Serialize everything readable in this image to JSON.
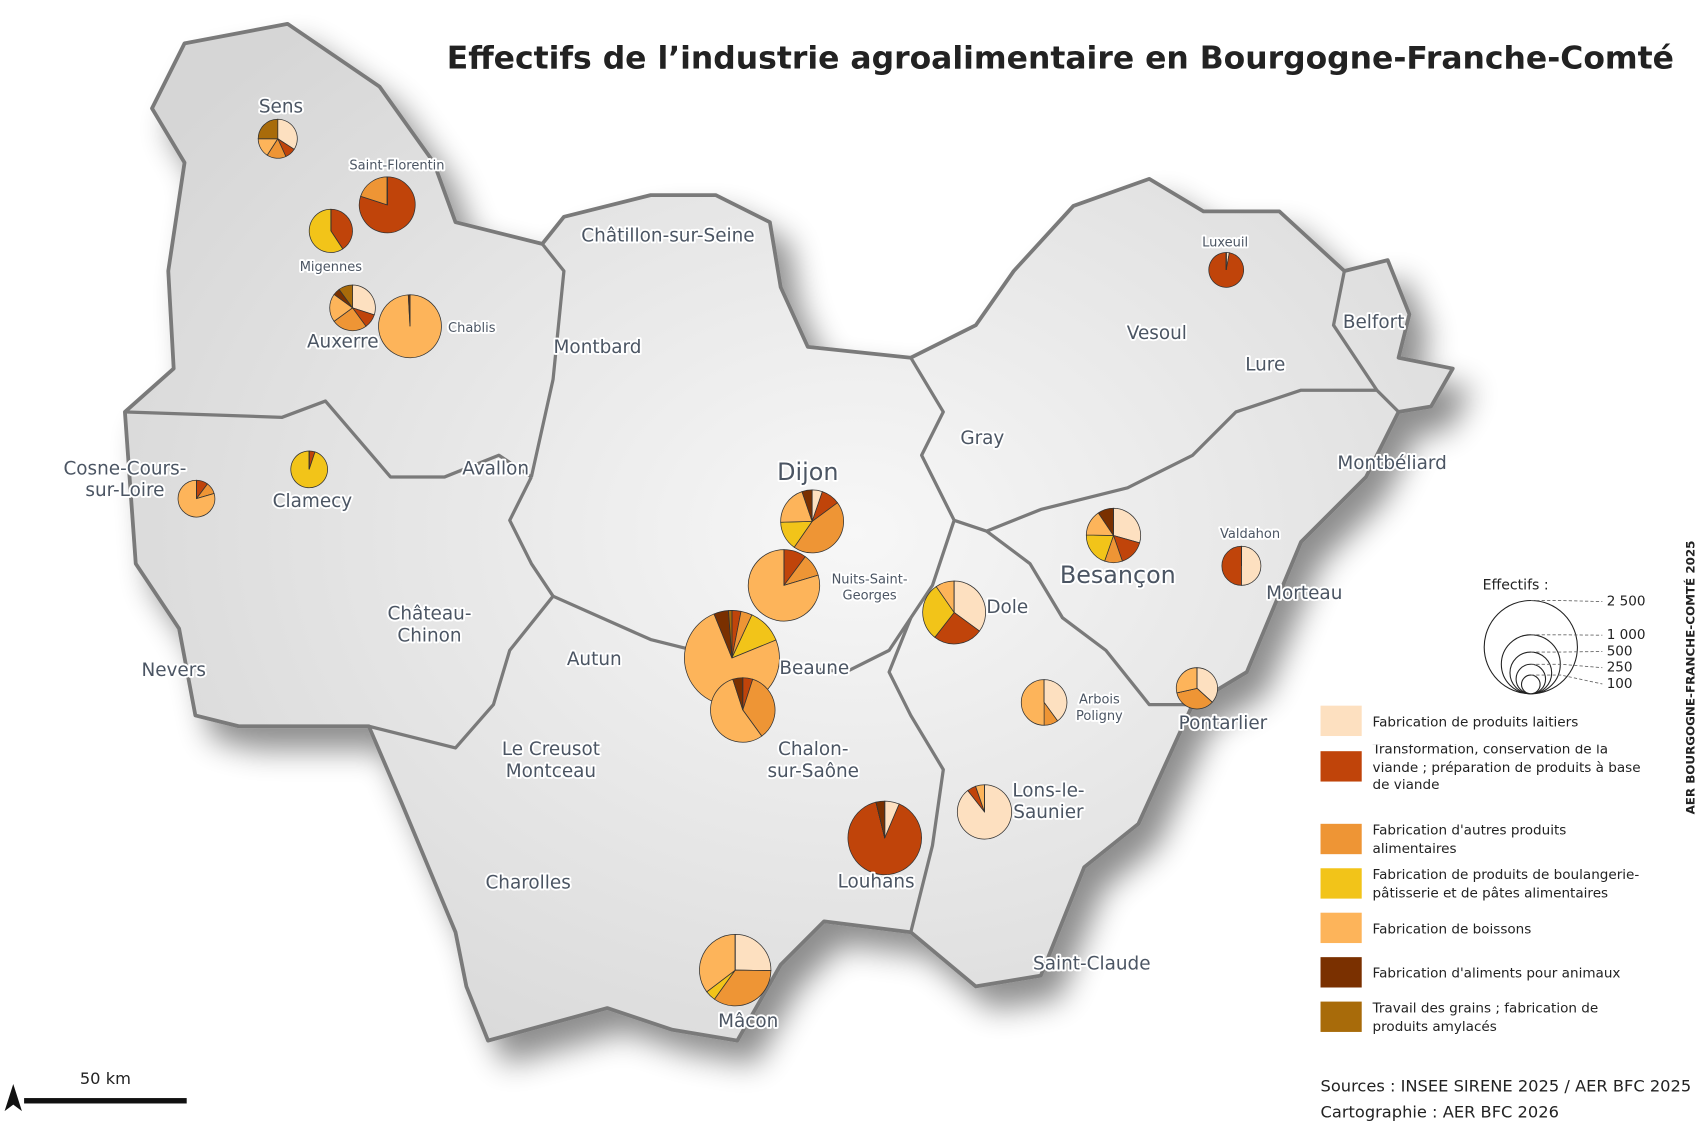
{
  "map": {
    "title": "Effectifs de l’industrie agroalimentaire en Bourgogne-Franche-Comté",
    "side_note": "AER BOURGOGNE-FRANCHE-COMTÉ 2025",
    "categories": [
      {
        "name": "Fabrication de produits laitiers",
        "color": "#fde0c0"
      },
      {
        "name": "Transformation, conservation de la viande ; préparation de produits à base de viande",
        "color": "#c0440a"
      },
      {
        "name": "Fabrication d'autres produits alimentaires",
        "color": "#ee9535"
      },
      {
        "name": "Fabrication de produits de boulangerie-pâtisserie et de pâtes alimentaires",
        "color": "#f2c419"
      },
      {
        "name": "Fabrication de boissons",
        "color": "#fdb45a"
      },
      {
        "name": "Fabrication d'aliments pour animaux",
        "color": "#7a3000"
      },
      {
        "name": "Travail des grains ; fabrication de produits amylacés",
        "color": "#a86b0a"
      }
    ],
    "size_legend": {
      "title": "Effectifs :",
      "ticks": [
        {
          "value": 2500,
          "label": "2 500"
        },
        {
          "value": 1000,
          "label": "1 000"
        },
        500,
        250,
        100
      ]
    },
    "places": [
      {
        "lines": [
          "Sens"
        ],
        "values": [
          150,
          40,
          70,
          0,
          70,
          0,
          110
        ]
      },
      {
        "lines": [
          "Saint-Florentin"
        ],
        "values": [
          0,
          720,
          180,
          0,
          0,
          0,
          0
        ]
      },
      {
        "lines": [
          "Migennes"
        ],
        "values": [
          0,
          220,
          0,
          320,
          0,
          0,
          0
        ]
      },
      {
        "lines": [
          "Auxerre"
        ],
        "values": [
          180,
          60,
          150,
          0,
          120,
          30,
          60
        ]
      },
      {
        "lines": [
          "Chablis"
        ],
        "values": [
          0,
          0,
          0,
          0,
          1130,
          10,
          0
        ]
      },
      {
        "lines": [
          "Châtillon-sur-Seine"
        ]
      },
      {
        "lines": [
          "Montbard"
        ]
      },
      {
        "lines": [
          "Avallon"
        ]
      },
      {
        "lines": [
          "Cosne-Cours-",
          "sur-Loire"
        ],
        "values": [
          0,
          40,
          40,
          0,
          310,
          0,
          0
        ]
      },
      {
        "lines": [
          "Clamecy"
        ],
        "values": [
          0,
          20,
          0,
          370,
          0,
          0,
          0
        ]
      },
      {
        "lines": [
          "Château-",
          "Chinon"
        ]
      },
      {
        "lines": [
          "Nevers"
        ]
      },
      {
        "lines": [
          "Autun"
        ]
      },
      {
        "lines": [
          "Le Creusot",
          "Montceau"
        ]
      },
      {
        "lines": [
          "Charolles"
        ]
      },
      {
        "lines": [
          "Dijon"
        ],
        "values": [
          60,
          110,
          510,
          170,
          230,
          60,
          0
        ]
      },
      {
        "lines": [
          "Nuits-Saint-",
          "Georges"
        ],
        "values": [
          0,
          150,
          150,
          0,
          1170,
          0,
          0
        ]
      },
      {
        "lines": [
          "Beaune"
        ],
        "values": [
          0,
          80,
          100,
          310,
          1950,
          130,
          30
        ]
      },
      {
        "lines": [
          "Chalon-",
          "sur-Saône"
        ],
        "values": [
          0,
          60,
          420,
          0,
          660,
          60,
          0
        ]
      },
      {
        "lines": [
          "Louhans"
        ],
        "values": [
          100,
          1400,
          0,
          0,
          0,
          60,
          0
        ]
      },
      {
        "lines": [
          "Mâcon"
        ],
        "values": [
          370,
          0,
          510,
          70,
          520,
          0,
          0
        ]
      },
      {
        "lines": [
          "Gray"
        ]
      },
      {
        "lines": [
          "Dole"
        ],
        "values": [
          400,
          290,
          0,
          340,
          110,
          0,
          0
        ]
      },
      {
        "lines": [
          "Arbois",
          "Poligny"
        ],
        "values": [
          240,
          0,
          60,
          0,
          300,
          0,
          0
        ]
      },
      {
        "lines": [
          "Lons-le-",
          "Saunier"
        ],
        "values": [
          760,
          45,
          0,
          0,
          45,
          0,
          0
        ]
      },
      {
        "lines": [
          "Saint-Claude"
        ]
      },
      {
        "lines": [
          "Vesoul"
        ]
      },
      {
        "lines": [
          "Lure"
        ]
      },
      {
        "lines": [
          "Luxeuil"
        ],
        "values": [
          10,
          340,
          0,
          0,
          0,
          0,
          0
        ]
      },
      {
        "lines": [
          "Belfort"
        ]
      },
      {
        "lines": [
          "Montbéliard"
        ]
      },
      {
        "lines": [
          "Besançon"
        ],
        "values": [
          250,
          130,
          90,
          170,
          130,
          80,
          0
        ]
      },
      {
        "lines": [
          "Valdahon"
        ],
        "values": [
          220,
          220,
          0,
          0,
          0,
          0,
          0
        ]
      },
      {
        "lines": [
          "Morteau"
        ]
      },
      {
        "lines": [
          "Pontarlier"
        ],
        "values": [
          180,
          0,
          170,
          0,
          140,
          0,
          0
        ]
      }
    ],
    "scale_bar": "50 km",
    "sources": "Sources : INSEE SIRENE 2025 / AER BFC 2025",
    "credits": "Cartographie : AER BFC 2026"
  }
}
